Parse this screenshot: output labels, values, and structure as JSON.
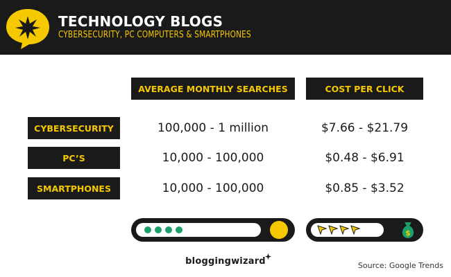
{
  "header": {
    "title": "TECHNOLOGY BLOGS",
    "subtitle": "CYBERSECURITY, PC COMPUTERS & SMARTPHONES",
    "logo_icon": "star-burst-speech-bubble-icon"
  },
  "table": {
    "columns": [
      "AVERAGE MONTHLY SEARCHES",
      "COST PER CLICK"
    ],
    "rows": [
      {
        "label": "CYBERSECURITY",
        "searches": "100,000 - 1 million",
        "cpc": "$7.66 - $21.79"
      },
      {
        "label": "PC’S",
        "searches": "10,000 - 100,000",
        "cpc": "$0.48 - $6.91"
      },
      {
        "label": "SMARTPHONES",
        "searches": "10,000 - 100,000",
        "cpc": "$0.85 - $3.52"
      }
    ]
  },
  "icons": {
    "search_bar": "search-bar-icon",
    "money_bag": "money-bag-icon",
    "cursor": "cursor-arrow-icon"
  },
  "footer": {
    "brand": "bloggingwizard",
    "source": "Source: Google Trends"
  },
  "colors": {
    "dark": "#1a1a1a",
    "accent": "#f5c800",
    "green": "#1aa06a"
  }
}
